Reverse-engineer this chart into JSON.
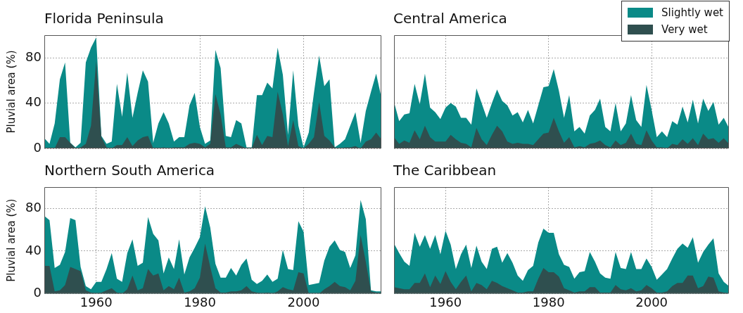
{
  "chart_data": [
    {
      "type": "area",
      "title": "Florida Peninsula",
      "ylabel": "Pluvial area (%)",
      "xlim": [
        1950,
        2015
      ],
      "xticks": [
        1960,
        1980,
        2000
      ],
      "ylim": [
        0,
        100
      ],
      "yticks": [
        0,
        40,
        80
      ],
      "grid": true,
      "tick_labels": "y",
      "x": [
        1950,
        1951,
        1952,
        1953,
        1954,
        1955,
        1956,
        1957,
        1958,
        1959,
        1960,
        1961,
        1962,
        1963,
        1964,
        1965,
        1966,
        1967,
        1968,
        1969,
        1970,
        1971,
        1972,
        1973,
        1974,
        1975,
        1976,
        1977,
        1978,
        1979,
        1980,
        1981,
        1982,
        1983,
        1984,
        1985,
        1986,
        1987,
        1988,
        1989,
        1990,
        1991,
        1992,
        1993,
        1994,
        1995,
        1996,
        1997,
        1998,
        1999,
        2000,
        2001,
        2002,
        2003,
        2004,
        2005,
        2006,
        2007,
        2008,
        2009,
        2010,
        2011,
        2012,
        2013,
        2014,
        2015
      ],
      "series": [
        {
          "color": "#0a8a87",
          "values": [
            9,
            4,
            22,
            61,
            76,
            5,
            1,
            5,
            76,
            89,
            98,
            11,
            4,
            6,
            57,
            28,
            67,
            27,
            49,
            69,
            59,
            5,
            22,
            32,
            22,
            6,
            10,
            10,
            38,
            49,
            19,
            4,
            7,
            87,
            71,
            11,
            10,
            25,
            22,
            1,
            1,
            47,
            47,
            58,
            53,
            89,
            65,
            12,
            69,
            20,
            1,
            14,
            49,
            82,
            55,
            61,
            1,
            4,
            8,
            20,
            32,
            5,
            33,
            50,
            66,
            45
          ]
        },
        {
          "color": "#2f4f4f",
          "values": [
            0,
            0,
            0,
            10,
            10,
            5,
            0,
            1,
            4,
            20,
            77,
            10,
            1,
            0,
            3,
            3,
            10,
            2,
            7,
            10,
            11,
            0,
            0,
            1,
            0,
            1,
            1,
            1,
            4,
            5,
            4,
            1,
            4,
            48,
            30,
            1,
            1,
            4,
            2,
            0,
            0,
            12,
            3,
            11,
            10,
            50,
            30,
            2,
            25,
            2,
            0,
            4,
            10,
            41,
            11,
            7,
            1,
            0,
            1,
            1,
            2,
            0,
            6,
            8,
            14,
            8
          ]
        }
      ]
    },
    {
      "type": "area",
      "title": "Central America",
      "xlim": [
        1950,
        2015
      ],
      "xticks": [
        1960,
        1980,
        2000
      ],
      "ylim": [
        0,
        100
      ],
      "yticks": [
        0,
        40,
        80
      ],
      "grid": true,
      "tick_labels": false,
      "legend": "top right",
      "x": [
        1950,
        1951,
        1952,
        1953,
        1954,
        1955,
        1956,
        1957,
        1958,
        1959,
        1960,
        1961,
        1962,
        1963,
        1964,
        1965,
        1966,
        1967,
        1968,
        1969,
        1970,
        1971,
        1972,
        1973,
        1974,
        1975,
        1976,
        1977,
        1978,
        1979,
        1980,
        1981,
        1982,
        1983,
        1984,
        1985,
        1986,
        1987,
        1988,
        1989,
        1990,
        1991,
        1992,
        1993,
        1994,
        1995,
        1996,
        1997,
        1998,
        1999,
        2000,
        2001,
        2002,
        2003,
        2004,
        2005,
        2006,
        2007,
        2008,
        2009,
        2010,
        2011,
        2012,
        2013,
        2014,
        2015
      ],
      "series": [
        {
          "name": "Slightly wet",
          "color": "#0a8a87",
          "values": [
            41,
            24,
            30,
            31,
            57,
            39,
            66,
            36,
            32,
            26,
            36,
            40,
            37,
            27,
            27,
            21,
            53,
            40,
            27,
            40,
            52,
            42,
            38,
            29,
            32,
            23,
            34,
            22,
            38,
            54,
            55,
            70,
            51,
            27,
            47,
            15,
            19,
            13,
            29,
            34,
            44,
            19,
            15,
            40,
            15,
            22,
            47,
            25,
            19,
            56,
            34,
            10,
            15,
            10,
            24,
            21,
            37,
            23,
            43,
            22,
            44,
            33,
            41,
            21,
            27,
            18
          ]
        },
        {
          "name": "Very wet",
          "color": "#2f4f4f",
          "values": [
            10,
            4,
            7,
            5,
            16,
            8,
            20,
            10,
            6,
            6,
            6,
            12,
            8,
            5,
            4,
            1,
            18,
            8,
            3,
            12,
            20,
            15,
            6,
            4,
            5,
            4,
            4,
            3,
            8,
            13,
            14,
            27,
            15,
            5,
            10,
            1,
            2,
            1,
            4,
            5,
            7,
            3,
            1,
            7,
            3,
            5,
            13,
            4,
            3,
            16,
            7,
            1,
            1,
            0,
            4,
            3,
            8,
            4,
            9,
            3,
            13,
            8,
            9,
            5,
            9,
            4
          ]
        }
      ]
    },
    {
      "type": "area",
      "title": "Northern South America",
      "ylabel": "Pluvial area (%)",
      "xlim": [
        1950,
        2015
      ],
      "xticks": [
        1960,
        1980,
        2000
      ],
      "ylim": [
        0,
        100
      ],
      "yticks": [
        0,
        40,
        80
      ],
      "grid": true,
      "x": [
        1950,
        1951,
        1952,
        1953,
        1954,
        1955,
        1956,
        1957,
        1958,
        1959,
        1960,
        1961,
        1962,
        1963,
        1964,
        1965,
        1966,
        1967,
        1968,
        1969,
        1970,
        1971,
        1972,
        1973,
        1974,
        1975,
        1976,
        1977,
        1978,
        1979,
        1980,
        1981,
        1982,
        1983,
        1984,
        1985,
        1986,
        1987,
        1988,
        1989,
        1990,
        1991,
        1992,
        1993,
        1994,
        1995,
        1996,
        1997,
        1998,
        1999,
        2000,
        2001,
        2002,
        2003,
        2004,
        2005,
        2006,
        2007,
        2008,
        2009,
        2010,
        2011,
        2012,
        2013,
        2014,
        2015
      ],
      "series": [
        {
          "color": "#0a8a87",
          "values": [
            73,
            69,
            24,
            27,
            39,
            71,
            69,
            25,
            7,
            4,
            11,
            11,
            23,
            38,
            14,
            11,
            38,
            51,
            26,
            29,
            72,
            56,
            50,
            19,
            34,
            23,
            51,
            18,
            34,
            43,
            53,
            82,
            62,
            28,
            15,
            15,
            24,
            17,
            27,
            33,
            13,
            9,
            12,
            18,
            11,
            14,
            41,
            23,
            22,
            68,
            58,
            8,
            9,
            10,
            31,
            44,
            50,
            41,
            39,
            24,
            36,
            88,
            70,
            3,
            2,
            2
          ]
        },
        {
          "color": "#2f4f4f",
          "values": [
            26,
            26,
            2,
            3,
            8,
            25,
            23,
            21,
            3,
            1,
            0,
            1,
            3,
            5,
            1,
            0,
            4,
            17,
            3,
            5,
            23,
            17,
            19,
            3,
            7,
            4,
            15,
            1,
            2,
            5,
            15,
            47,
            25,
            5,
            1,
            1,
            2,
            2,
            3,
            7,
            2,
            1,
            0,
            1,
            0,
            2,
            6,
            4,
            3,
            20,
            19,
            0,
            0,
            0,
            4,
            7,
            11,
            7,
            6,
            3,
            12,
            55,
            30,
            2,
            1,
            1
          ]
        }
      ]
    },
    {
      "type": "area",
      "title": "The Caribbean",
      "xlim": [
        1950,
        2015
      ],
      "xticks": [
        1960,
        1980,
        2000
      ],
      "ylim": [
        0,
        100
      ],
      "yticks": [
        0,
        40,
        80
      ],
      "grid": true,
      "tick_labels": "x",
      "x": [
        1950,
        1951,
        1952,
        1953,
        1954,
        1955,
        1956,
        1957,
        1958,
        1959,
        1960,
        1961,
        1962,
        1963,
        1964,
        1965,
        1966,
        1967,
        1968,
        1969,
        1970,
        1971,
        1972,
        1973,
        1974,
        1975,
        1976,
        1977,
        1978,
        1979,
        1980,
        1981,
        1982,
        1983,
        1984,
        1985,
        1986,
        1987,
        1988,
        1989,
        1990,
        1991,
        1992,
        1993,
        1994,
        1995,
        1996,
        1997,
        1998,
        1999,
        2000,
        2001,
        2002,
        2003,
        2004,
        2005,
        2006,
        2007,
        2008,
        2009,
        2010,
        2011,
        2012,
        2013,
        2014,
        2015
      ],
      "series": [
        {
          "color": "#0a8a87",
          "values": [
            47,
            38,
            30,
            26,
            57,
            44,
            55,
            42,
            55,
            37,
            59,
            46,
            23,
            37,
            46,
            24,
            45,
            30,
            23,
            42,
            44,
            29,
            38,
            29,
            17,
            12,
            22,
            26,
            48,
            61,
            57,
            57,
            37,
            27,
            25,
            14,
            20,
            21,
            39,
            30,
            19,
            15,
            14,
            39,
            24,
            23,
            39,
            23,
            23,
            33,
            25,
            13,
            18,
            23,
            33,
            42,
            47,
            43,
            53,
            29,
            39,
            46,
            52,
            19,
            11,
            7
          ]
        },
        {
          "color": "#2f4f4f",
          "values": [
            6,
            5,
            4,
            4,
            10,
            10,
            19,
            6,
            17,
            9,
            21,
            11,
            4,
            11,
            17,
            2,
            10,
            8,
            4,
            12,
            10,
            7,
            5,
            3,
            1,
            1,
            2,
            2,
            14,
            24,
            20,
            20,
            16,
            5,
            3,
            1,
            2,
            2,
            6,
            6,
            1,
            1,
            1,
            8,
            4,
            3,
            5,
            2,
            3,
            8,
            5,
            1,
            1,
            2,
            7,
            10,
            10,
            17,
            17,
            5,
            7,
            16,
            15,
            2,
            1,
            0
          ]
        }
      ]
    }
  ]
}
